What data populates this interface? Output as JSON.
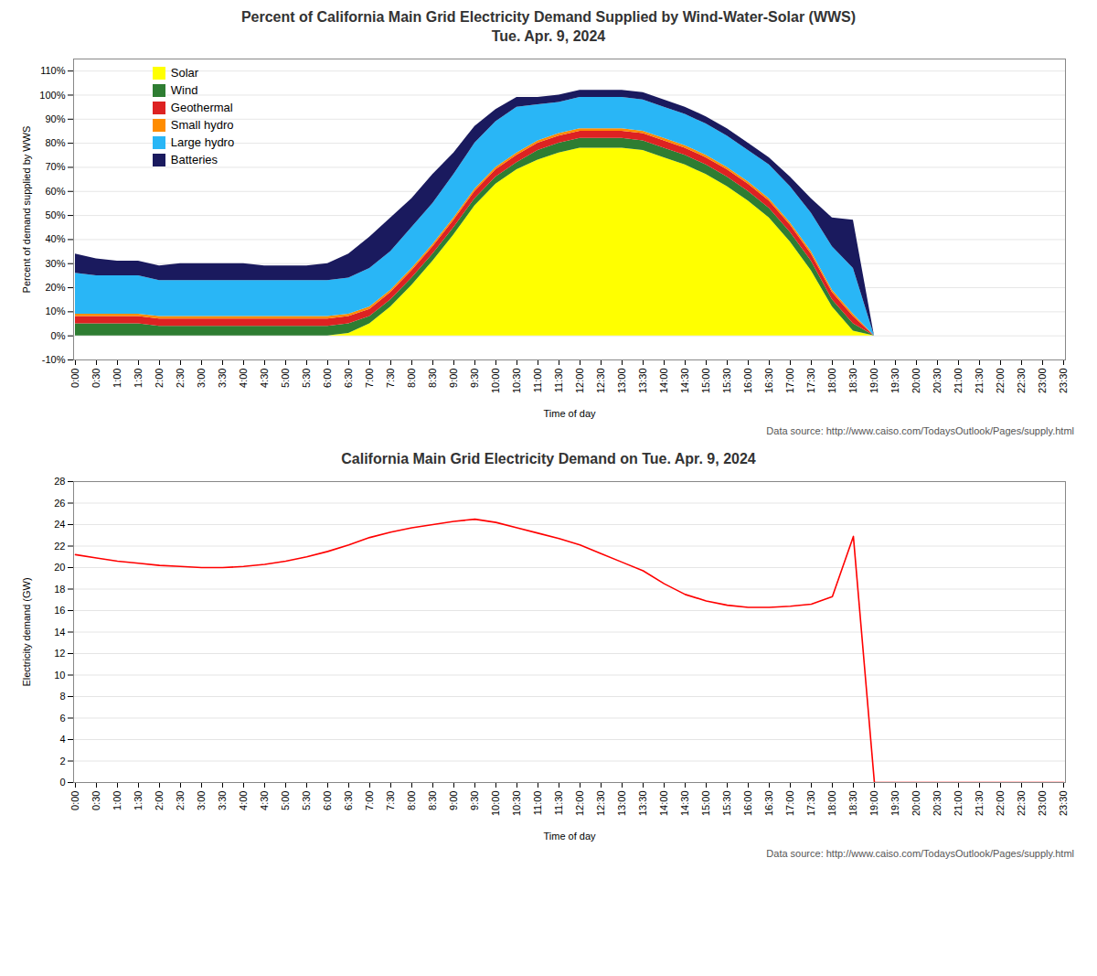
{
  "chart_data": [
    {
      "type": "area",
      "title": "Percent of California Main Grid Electricity Demand Supplied by Wind-Water-Solar (WWS)",
      "subtitle": "Tue. Apr. 9, 2024",
      "xlabel": "Time of day",
      "ylabel": "Percent of demand supplied by WWS",
      "annotation": "Data source: http://www.caiso.com/TodaysOutlook/Pages/supply.html",
      "stacked": true,
      "grid": true,
      "legend": "upper left",
      "categories": [
        "0:00",
        "0:30",
        "1:00",
        "1:30",
        "2:00",
        "2:30",
        "3:00",
        "3:30",
        "4:00",
        "4:30",
        "5:00",
        "5:30",
        "6:00",
        "6:30",
        "7:00",
        "7:30",
        "8:00",
        "8:30",
        "9:00",
        "9:30",
        "10:00",
        "10:30",
        "11:00",
        "11:30",
        "12:00",
        "12:30",
        "13:00",
        "13:30",
        "14:00",
        "14:30",
        "15:00",
        "15:30",
        "16:00",
        "16:30",
        "17:00",
        "17:30",
        "18:00",
        "18:30",
        "19:00",
        "19:30",
        "20:00",
        "20:30",
        "21:00",
        "21:30",
        "22:00",
        "22:30",
        "23:00",
        "23:30"
      ],
      "series": [
        {
          "name": "Solar",
          "color": "#FFFF00",
          "values": [
            0,
            0,
            0,
            0,
            0,
            0,
            0,
            0,
            0,
            0,
            0,
            0,
            0,
            0.01,
            0.05,
            0.12,
            0.21,
            0.31,
            0.42,
            0.54,
            0.63,
            0.69,
            0.73,
            0.76,
            0.78,
            0.78,
            0.78,
            0.77,
            0.74,
            0.71,
            0.67,
            0.62,
            0.56,
            0.49,
            0.39,
            0.27,
            0.12,
            0.02,
            0,
            0,
            0,
            0,
            0,
            0,
            0,
            0,
            0,
            0
          ]
        },
        {
          "name": "Wind",
          "color": "#2e7d32",
          "values": [
            0.05,
            0.05,
            0.05,
            0.05,
            0.04,
            0.04,
            0.04,
            0.04,
            0.04,
            0.04,
            0.04,
            0.04,
            0.04,
            0.04,
            0.03,
            0.03,
            0.03,
            0.03,
            0.03,
            0.03,
            0.03,
            0.03,
            0.04,
            0.04,
            0.04,
            0.04,
            0.04,
            0.04,
            0.04,
            0.04,
            0.04,
            0.04,
            0.04,
            0.04,
            0.04,
            0.04,
            0.03,
            0.03,
            0,
            0,
            0,
            0,
            0,
            0,
            0,
            0,
            0,
            0
          ]
        },
        {
          "name": "Geothermal",
          "color": "#dd2222",
          "values": [
            0.03,
            0.03,
            0.03,
            0.03,
            0.03,
            0.03,
            0.03,
            0.03,
            0.03,
            0.03,
            0.03,
            0.03,
            0.03,
            0.03,
            0.03,
            0.03,
            0.03,
            0.03,
            0.03,
            0.03,
            0.03,
            0.03,
            0.03,
            0.03,
            0.03,
            0.03,
            0.03,
            0.03,
            0.03,
            0.03,
            0.03,
            0.03,
            0.03,
            0.03,
            0.03,
            0.03,
            0.03,
            0.03,
            0,
            0,
            0,
            0,
            0,
            0,
            0,
            0,
            0,
            0
          ]
        },
        {
          "name": "Small hydro",
          "color": "#ff8c00",
          "values": [
            0.01,
            0.01,
            0.01,
            0.01,
            0.01,
            0.01,
            0.01,
            0.01,
            0.01,
            0.01,
            0.01,
            0.01,
            0.01,
            0.01,
            0.01,
            0.01,
            0.01,
            0.01,
            0.01,
            0.01,
            0.01,
            0.01,
            0.01,
            0.01,
            0.01,
            0.01,
            0.01,
            0.01,
            0.01,
            0.01,
            0.01,
            0.01,
            0.01,
            0.01,
            0.01,
            0.01,
            0.01,
            0.01,
            0,
            0,
            0,
            0,
            0,
            0,
            0,
            0,
            0,
            0
          ]
        },
        {
          "name": "Large hydro",
          "color": "#29b6f6",
          "values": [
            0.17,
            0.16,
            0.16,
            0.16,
            0.15,
            0.15,
            0.15,
            0.15,
            0.15,
            0.15,
            0.15,
            0.15,
            0.15,
            0.15,
            0.16,
            0.16,
            0.17,
            0.17,
            0.18,
            0.19,
            0.19,
            0.19,
            0.15,
            0.13,
            0.13,
            0.13,
            0.13,
            0.13,
            0.13,
            0.13,
            0.13,
            0.13,
            0.13,
            0.14,
            0.15,
            0.16,
            0.18,
            0.19,
            0,
            0,
            0,
            0,
            0,
            0,
            0,
            0,
            0,
            0
          ]
        },
        {
          "name": "Batteries",
          "color": "#1a1a5e",
          "values": [
            0.08,
            0.07,
            0.06,
            0.06,
            0.06,
            0.07,
            0.07,
            0.07,
            0.07,
            0.06,
            0.06,
            0.06,
            0.07,
            0.1,
            0.13,
            0.14,
            0.12,
            0.12,
            0.09,
            0.07,
            0.05,
            0.04,
            0.03,
            0.03,
            0.03,
            0.03,
            0.03,
            0.03,
            0.03,
            0.03,
            0.03,
            0.03,
            0.03,
            0.03,
            0.04,
            0.06,
            0.12,
            0.2,
            0,
            0,
            0,
            0,
            0,
            0,
            0,
            0,
            0,
            0
          ]
        }
      ],
      "ylim": [
        -0.1,
        1.15
      ],
      "yticks": [
        {
          "value": -0.1,
          "label": "-10%"
        },
        {
          "value": 0.0,
          "label": "0%"
        },
        {
          "value": 0.1,
          "label": "10%"
        },
        {
          "value": 0.2,
          "label": "20%"
        },
        {
          "value": 0.3,
          "label": "30%"
        },
        {
          "value": 0.4,
          "label": "40%"
        },
        {
          "value": 0.5,
          "label": "50%"
        },
        {
          "value": 0.6,
          "label": "60%"
        },
        {
          "value": 0.7,
          "label": "70%"
        },
        {
          "value": 0.8,
          "label": "80%"
        },
        {
          "value": 0.9,
          "label": "90%"
        },
        {
          "value": 1.0,
          "label": "100%"
        },
        {
          "value": 1.1,
          "label": "110%"
        }
      ]
    },
    {
      "type": "line",
      "title": "California Main Grid Electricity Demand on Tue. Apr. 9, 2024",
      "xlabel": "Time of day",
      "ylabel": "Electricity demand (GW)",
      "annotation": "Data source: http://www.caiso.com/TodaysOutlook/Pages/supply.html",
      "grid": true,
      "categories": [
        "0:00",
        "0:30",
        "1:00",
        "1:30",
        "2:00",
        "2:30",
        "3:00",
        "3:30",
        "4:00",
        "4:30",
        "5:00",
        "5:30",
        "6:00",
        "6:30",
        "7:00",
        "7:30",
        "8:00",
        "8:30",
        "9:00",
        "9:30",
        "10:00",
        "10:30",
        "11:00",
        "11:30",
        "12:00",
        "12:30",
        "13:00",
        "13:30",
        "14:00",
        "14:30",
        "15:00",
        "15:30",
        "16:00",
        "16:30",
        "17:00",
        "17:30",
        "18:00",
        "18:30",
        "19:00",
        "19:30",
        "20:00",
        "20:30",
        "21:00",
        "21:30",
        "22:00",
        "22:30",
        "23:00",
        "23:30"
      ],
      "values": [
        21.2,
        20.9,
        20.6,
        20.4,
        20.2,
        20.1,
        20.0,
        20.0,
        20.1,
        20.3,
        20.6,
        21.0,
        21.5,
        22.1,
        22.8,
        23.3,
        23.7,
        24.0,
        24.3,
        24.5,
        24.2,
        23.7,
        23.2,
        22.7,
        22.1,
        21.3,
        20.5,
        19.7,
        18.5,
        17.5,
        16.9,
        16.5,
        16.3,
        16.3,
        16.4,
        16.6,
        17.3,
        22.9,
        0,
        0,
        0,
        0,
        0,
        0,
        0,
        0,
        0,
        0
      ],
      "color": "red",
      "ylim": [
        0,
        28
      ],
      "yticks": [
        0,
        2,
        4,
        6,
        8,
        10,
        12,
        14,
        16,
        18,
        20,
        22,
        24,
        26,
        28
      ]
    }
  ]
}
